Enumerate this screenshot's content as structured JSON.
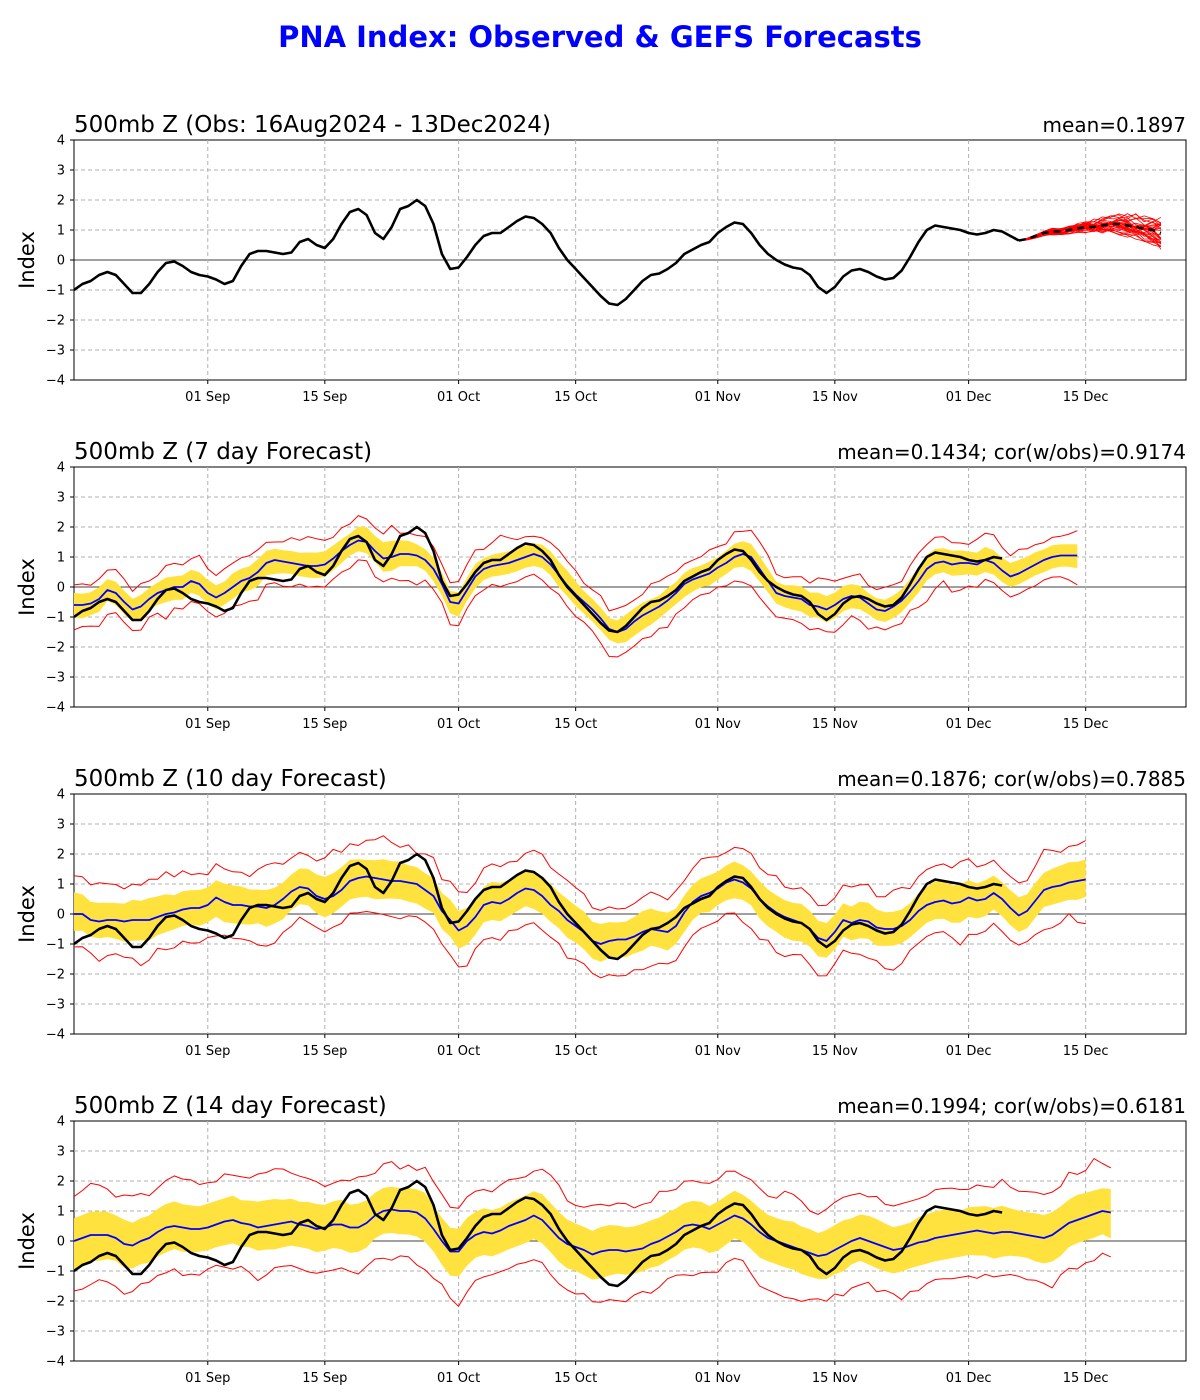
{
  "title": "PNA Index: Observed & GEFS Forecasts",
  "colors": {
    "title": "#0000ff",
    "observed": "#000000",
    "ens_mean": "#0000ff",
    "spread": "#ffe23d",
    "members": "#ff0000"
  },
  "chart_data": [
    {
      "type": "line",
      "title": "500mb Z (Obs: 16Aug2024 - 13Dec2024)",
      "stat": "mean=0.1897",
      "ylabel": "Index",
      "ylim": [
        -4,
        4
      ],
      "yticks": [
        "4",
        "3",
        "2",
        "1",
        "0",
        "−1",
        "−2",
        "−3",
        "−4"
      ],
      "xlim_days": [
        0,
        133
      ],
      "xticks": [
        {
          "day": 16,
          "label": "01 Sep"
        },
        {
          "day": 30,
          "label": "15 Sep"
        },
        {
          "day": 46,
          "label": "01 Oct"
        },
        {
          "day": 60,
          "label": "15 Oct"
        },
        {
          "day": 77,
          "label": "01 Nov"
        },
        {
          "day": 91,
          "label": "15 Nov"
        },
        {
          "day": 107,
          "label": "01 Dec"
        },
        {
          "day": 121,
          "label": "15 Dec"
        }
      ],
      "observed": [
        -1.0,
        -0.8,
        -0.7,
        -0.5,
        -0.4,
        -0.5,
        -0.8,
        -1.1,
        -1.1,
        -0.8,
        -0.4,
        -0.1,
        -0.05,
        -0.2,
        -0.4,
        -0.5,
        -0.55,
        -0.65,
        -0.8,
        -0.7,
        -0.2,
        0.2,
        0.3,
        0.3,
        0.25,
        0.2,
        0.25,
        0.6,
        0.7,
        0.5,
        0.4,
        0.7,
        1.2,
        1.6,
        1.7,
        1.5,
        0.9,
        0.7,
        1.1,
        1.7,
        1.8,
        2.0,
        1.8,
        1.2,
        0.2,
        -0.3,
        -0.25,
        0.1,
        0.5,
        0.8,
        0.9,
        0.9,
        1.1,
        1.3,
        1.45,
        1.4,
        1.2,
        0.9,
        0.4,
        0.0,
        -0.3,
        -0.6,
        -0.9,
        -1.2,
        -1.45,
        -1.5,
        -1.3,
        -1.0,
        -0.7,
        -0.5,
        -0.45,
        -0.3,
        -0.1,
        0.2,
        0.35,
        0.5,
        0.6,
        0.9,
        1.1,
        1.25,
        1.2,
        0.9,
        0.5,
        0.2,
        0.0,
        -0.15,
        -0.25,
        -0.3,
        -0.5,
        -0.9,
        -1.1,
        -0.9,
        -0.55,
        -0.35,
        -0.3,
        -0.4,
        -0.55,
        -0.65,
        -0.6,
        -0.35,
        0.1,
        0.6,
        1.0,
        1.15,
        1.1,
        1.05,
        1.0,
        0.9,
        0.85,
        0.9,
        1.0,
        0.95,
        0.8,
        0.65
      ],
      "ens_mean_forecast": [
        0.65,
        0.7,
        0.8,
        0.9,
        0.95,
        0.95,
        1.0,
        1.05,
        1.1,
        1.1,
        1.15,
        1.2,
        1.2,
        1.15,
        1.1,
        1.05,
        1.0,
        0.9
      ],
      "ensemble_members_count": 31
    },
    {
      "type": "line",
      "title": "500mb Z (7 day Forecast)",
      "stat": "mean=0.1434; cor(w/obs)=0.9174",
      "ylabel": "Index",
      "ylim": [
        -4,
        4
      ],
      "yticks": [
        "4",
        "3",
        "2",
        "1",
        "0",
        "−1",
        "−2",
        "−3",
        "−4"
      ],
      "xlim_days": [
        0,
        133
      ],
      "xticks": [
        {
          "day": 16,
          "label": "01 Sep"
        },
        {
          "day": 30,
          "label": "15 Sep"
        },
        {
          "day": 46,
          "label": "01 Oct"
        },
        {
          "day": 60,
          "label": "15 Oct"
        },
        {
          "day": 77,
          "label": "01 Nov"
        },
        {
          "day": 91,
          "label": "15 Nov"
        },
        {
          "day": 107,
          "label": "01 Dec"
        },
        {
          "day": 121,
          "label": "15 Dec"
        }
      ],
      "forecast_mean": [
        -0.6,
        -0.6,
        -0.55,
        -0.4,
        -0.1,
        -0.2,
        -0.5,
        -0.75,
        -0.65,
        -0.4,
        -0.2,
        -0.1,
        0.0,
        0.0,
        0.2,
        0.1,
        -0.2,
        -0.35,
        -0.2,
        0.0,
        0.2,
        0.3,
        0.5,
        0.8,
        0.9,
        0.85,
        0.8,
        0.75,
        0.7,
        0.7,
        0.75,
        0.95,
        1.2,
        1.4,
        1.55,
        1.5,
        1.2,
        0.95,
        1.0,
        1.1,
        1.1,
        1.05,
        0.9,
        0.6,
        0.1,
        -0.5,
        -0.55,
        -0.1,
        0.35,
        0.6,
        0.7,
        0.75,
        0.8,
        0.9,
        1.0,
        1.1,
        1.0,
        0.75,
        0.4,
        0.05,
        -0.25,
        -0.5,
        -0.75,
        -1.05,
        -1.4,
        -1.5,
        -1.4,
        -1.15,
        -0.95,
        -0.8,
        -0.65,
        -0.45,
        -0.2,
        0.1,
        0.25,
        0.35,
        0.45,
        0.65,
        0.8,
        1.0,
        1.1,
        1.0,
        0.6,
        0.2,
        -0.2,
        -0.3,
        -0.35,
        -0.4,
        -0.6,
        -0.65,
        -0.75,
        -0.6,
        -0.4,
        -0.3,
        -0.35,
        -0.55,
        -0.75,
        -0.8,
        -0.65,
        -0.45,
        -0.15,
        0.2,
        0.6,
        0.8,
        0.85,
        0.75,
        0.8,
        0.8,
        0.75,
        0.9,
        0.8,
        0.55,
        0.35,
        0.45,
        0.6,
        0.75,
        0.9,
        1.0,
        1.05,
        1.05,
        1.05
      ],
      "observed_days": 112
    },
    {
      "type": "line",
      "title": "500mb Z (10 day Forecast)",
      "stat": "mean=0.1876; cor(w/obs)=0.7885",
      "ylabel": "Index",
      "ylim": [
        -4,
        4
      ],
      "yticks": [
        "4",
        "3",
        "2",
        "1",
        "0",
        "−1",
        "−2",
        "−3",
        "−4"
      ],
      "xlim_days": [
        0,
        133
      ],
      "xticks": [
        {
          "day": 16,
          "label": "01 Sep"
        },
        {
          "day": 30,
          "label": "15 Sep"
        },
        {
          "day": 46,
          "label": "01 Oct"
        },
        {
          "day": 60,
          "label": "15 Oct"
        },
        {
          "day": 77,
          "label": "01 Nov"
        },
        {
          "day": 91,
          "label": "15 Nov"
        },
        {
          "day": 107,
          "label": "01 Dec"
        },
        {
          "day": 121,
          "label": "15 Dec"
        }
      ],
      "forecast_mean": [
        0.0,
        0.0,
        -0.2,
        -0.25,
        -0.2,
        -0.2,
        -0.25,
        -0.2,
        -0.2,
        -0.2,
        -0.1,
        0.0,
        0.05,
        0.15,
        0.2,
        0.2,
        0.3,
        0.55,
        0.4,
        0.3,
        0.3,
        0.25,
        0.25,
        0.2,
        0.3,
        0.5,
        0.75,
        0.9,
        0.85,
        0.6,
        0.5,
        0.6,
        0.8,
        1.1,
        1.2,
        1.25,
        1.2,
        1.15,
        1.1,
        1.1,
        1.05,
        1.0,
        0.8,
        0.6,
        0.1,
        -0.2,
        -0.55,
        -0.4,
        -0.1,
        0.3,
        0.4,
        0.35,
        0.5,
        0.7,
        0.85,
        0.8,
        0.6,
        0.3,
        0.1,
        -0.2,
        -0.4,
        -0.6,
        -0.9,
        -1.0,
        -0.9,
        -0.85,
        -0.85,
        -0.75,
        -0.6,
        -0.5,
        -0.55,
        -0.6,
        -0.4,
        0.05,
        0.4,
        0.6,
        0.7,
        0.85,
        1.05,
        1.15,
        1.05,
        0.85,
        0.5,
        0.25,
        0.05,
        -0.1,
        -0.2,
        -0.3,
        -0.5,
        -0.8,
        -0.9,
        -0.6,
        -0.2,
        -0.3,
        -0.2,
        -0.25,
        -0.45,
        -0.5,
        -0.5,
        -0.4,
        -0.2,
        0.1,
        0.3,
        0.4,
        0.45,
        0.35,
        0.4,
        0.55,
        0.45,
        0.5,
        0.7,
        0.5,
        0.2,
        -0.05,
        0.1,
        0.45,
        0.8,
        0.9,
        0.95,
        1.05,
        1.1,
        1.15
      ],
      "observed_days": 112
    },
    {
      "type": "line",
      "title": "500mb Z (14 day Forecast)",
      "stat": "mean=0.1994; cor(w/obs)=0.6181",
      "ylabel": "Index",
      "ylim": [
        -4,
        4
      ],
      "yticks": [
        "4",
        "3",
        "2",
        "1",
        "0",
        "−1",
        "−2",
        "−3",
        "−4"
      ],
      "xlim_days": [
        0,
        133
      ],
      "xticks": [
        {
          "day": 16,
          "label": "01 Sep"
        },
        {
          "day": 30,
          "label": "15 Sep"
        },
        {
          "day": 46,
          "label": "01 Oct"
        },
        {
          "day": 60,
          "label": "15 Oct"
        },
        {
          "day": 77,
          "label": "01 Nov"
        },
        {
          "day": 91,
          "label": "15 Nov"
        },
        {
          "day": 107,
          "label": "01 Dec"
        },
        {
          "day": 121,
          "label": "15 Dec"
        }
      ],
      "forecast_mean": [
        0.0,
        0.1,
        0.2,
        0.2,
        0.2,
        0.1,
        -0.1,
        -0.15,
        0.0,
        0.1,
        0.3,
        0.45,
        0.5,
        0.45,
        0.4,
        0.4,
        0.45,
        0.55,
        0.65,
        0.7,
        0.6,
        0.55,
        0.45,
        0.5,
        0.55,
        0.6,
        0.65,
        0.55,
        0.5,
        0.4,
        0.45,
        0.55,
        0.55,
        0.45,
        0.45,
        0.6,
        0.85,
        1.0,
        1.05,
        1.0,
        1.0,
        0.95,
        0.75,
        0.4,
        0.0,
        -0.35,
        -0.35,
        0.0,
        0.2,
        0.3,
        0.25,
        0.35,
        0.5,
        0.6,
        0.7,
        0.85,
        0.7,
        0.4,
        0.1,
        -0.1,
        -0.2,
        -0.3,
        -0.45,
        -0.35,
        -0.3,
        -0.3,
        -0.35,
        -0.3,
        -0.25,
        -0.1,
        0.0,
        0.15,
        0.3,
        0.5,
        0.55,
        0.5,
        0.4,
        0.55,
        0.7,
        0.85,
        0.75,
        0.55,
        0.3,
        0.1,
        0.0,
        -0.1,
        -0.2,
        -0.3,
        -0.4,
        -0.5,
        -0.45,
        -0.3,
        -0.15,
        0.0,
        0.1,
        0.0,
        -0.1,
        -0.2,
        -0.3,
        -0.25,
        -0.15,
        -0.05,
        0.0,
        0.1,
        0.15,
        0.2,
        0.25,
        0.3,
        0.35,
        0.3,
        0.25,
        0.3,
        0.3,
        0.25,
        0.2,
        0.15,
        0.1,
        0.2,
        0.4,
        0.6,
        0.7,
        0.8,
        0.9,
        1.0,
        0.95
      ],
      "observed_days": 112
    }
  ]
}
